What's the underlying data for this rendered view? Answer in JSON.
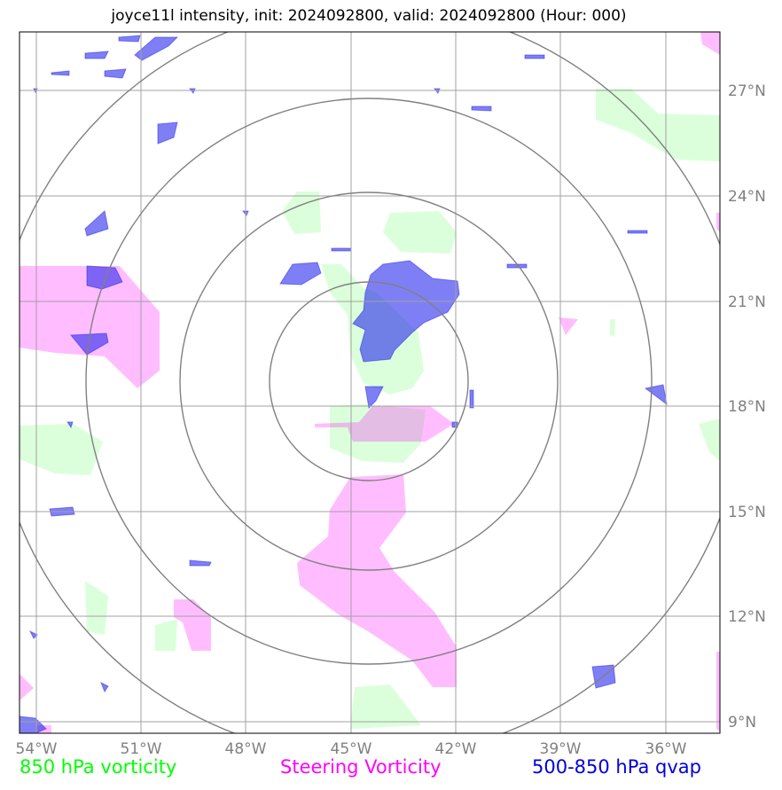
{
  "title": "joyce11l intensity, init: 2024092800, valid: 2024092800 (Hour: 000)",
  "map": {
    "lon_labels": [
      "54°W",
      "51°W",
      "48°W",
      "45°W",
      "42°W",
      "39°W",
      "36°W"
    ],
    "lat_labels": [
      "27°N",
      "24°N",
      "21°N",
      "18°N",
      "15°N",
      "12°N",
      "9°N"
    ],
    "storm_center": {
      "lon": -44.5,
      "lat": 18.7
    },
    "range_rings_count": 4
  },
  "legend": {
    "vorticity_850": "850 hPa vorticity",
    "steering_vorticity": "Steering Vorticity",
    "qvap": "500-850 hPa qvap"
  },
  "colors": {
    "vorticity_850": "#00ff00",
    "steering_vorticity": "#ff00ff",
    "qvap": "#0000dd",
    "grid": "#a0a0a0",
    "rings": "#808080"
  }
}
